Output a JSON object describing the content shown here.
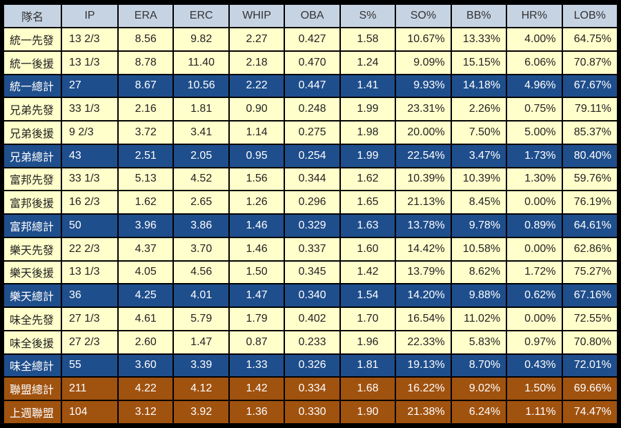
{
  "headers": [
    "隊名",
    "IP",
    "ERA",
    "ERC",
    "WHIP",
    "OBA",
    "S%",
    "SO%",
    "BB%",
    "HR%",
    "LOB%"
  ],
  "rows": [
    {
      "type": "normal",
      "cells": [
        "統一先發",
        "13 2/3",
        "8.56",
        "9.82",
        "2.27",
        "0.427",
        "1.58",
        "10.67%",
        "13.33%",
        "4.00%",
        "64.75%"
      ]
    },
    {
      "type": "normal",
      "cells": [
        "統一後援",
        "13 1/3",
        "8.78",
        "11.40",
        "2.18",
        "0.470",
        "1.24",
        "9.09%",
        "15.15%",
        "6.06%",
        "70.87%"
      ]
    },
    {
      "type": "total",
      "cells": [
        "統一總計",
        "27",
        "8.67",
        "10.56",
        "2.22",
        "0.447",
        "1.41",
        "9.93%",
        "14.18%",
        "4.96%",
        "67.67%"
      ]
    },
    {
      "type": "normal",
      "cells": [
        "兄弟先發",
        "33 1/3",
        "2.16",
        "1.81",
        "0.90",
        "0.248",
        "1.99",
        "23.31%",
        "2.26%",
        "0.75%",
        "79.11%"
      ]
    },
    {
      "type": "normal",
      "cells": [
        "兄弟後援",
        "9 2/3",
        "3.72",
        "3.41",
        "1.14",
        "0.275",
        "1.98",
        "20.00%",
        "7.50%",
        "5.00%",
        "85.37%"
      ]
    },
    {
      "type": "total",
      "cells": [
        "兄弟總計",
        "43",
        "2.51",
        "2.05",
        "0.95",
        "0.254",
        "1.99",
        "22.54%",
        "3.47%",
        "1.73%",
        "80.40%"
      ]
    },
    {
      "type": "normal",
      "cells": [
        "富邦先發",
        "33 1/3",
        "5.13",
        "4.52",
        "1.56",
        "0.344",
        "1.62",
        "10.39%",
        "10.39%",
        "1.30%",
        "59.76%"
      ]
    },
    {
      "type": "normal",
      "cells": [
        "富邦後援",
        "16 2/3",
        "1.62",
        "2.65",
        "1.26",
        "0.296",
        "1.65",
        "21.13%",
        "8.45%",
        "0.00%",
        "76.19%"
      ]
    },
    {
      "type": "total",
      "cells": [
        "富邦總計",
        "50",
        "3.96",
        "3.86",
        "1.46",
        "0.329",
        "1.63",
        "13.78%",
        "9.78%",
        "0.89%",
        "64.61%"
      ]
    },
    {
      "type": "normal",
      "cells": [
        "樂天先發",
        "22 2/3",
        "4.37",
        "3.70",
        "1.46",
        "0.337",
        "1.60",
        "14.42%",
        "10.58%",
        "0.00%",
        "62.86%"
      ]
    },
    {
      "type": "normal",
      "cells": [
        "樂天後援",
        "13 1/3",
        "4.05",
        "4.56",
        "1.50",
        "0.345",
        "1.42",
        "13.79%",
        "8.62%",
        "1.72%",
        "75.27%"
      ]
    },
    {
      "type": "total",
      "cells": [
        "樂天總計",
        "36",
        "4.25",
        "4.01",
        "1.47",
        "0.340",
        "1.54",
        "14.20%",
        "9.88%",
        "0.62%",
        "67.16%"
      ]
    },
    {
      "type": "normal",
      "cells": [
        "味全先發",
        "27 1/3",
        "4.61",
        "5.79",
        "1.79",
        "0.402",
        "1.70",
        "16.54%",
        "11.02%",
        "0.00%",
        "72.55%"
      ]
    },
    {
      "type": "normal",
      "cells": [
        "味全後援",
        "27 2/3",
        "2.60",
        "1.47",
        "0.87",
        "0.233",
        "1.96",
        "22.33%",
        "5.83%",
        "0.97%",
        "70.80%"
      ]
    },
    {
      "type": "total",
      "cells": [
        "味全總計",
        "55",
        "3.60",
        "3.39",
        "1.33",
        "0.326",
        "1.81",
        "19.13%",
        "8.70%",
        "0.43%",
        "72.01%"
      ]
    },
    {
      "type": "league",
      "cells": [
        "聯盟總計",
        "211",
        "4.22",
        "4.12",
        "1.42",
        "0.334",
        "1.68",
        "16.22%",
        "9.02%",
        "1.50%",
        "69.66%"
      ]
    },
    {
      "type": "league",
      "cells": [
        "上週聯盟",
        "104",
        "3.12",
        "3.92",
        "1.36",
        "0.330",
        "1.90",
        "21.38%",
        "6.24%",
        "1.11%",
        "74.47%"
      ]
    }
  ],
  "colors": {
    "header_bg": "#c6d3e3",
    "normal_bg": "#ffffcc",
    "total_bg": "#1f4e8c",
    "league_bg": "#a0520f"
  }
}
